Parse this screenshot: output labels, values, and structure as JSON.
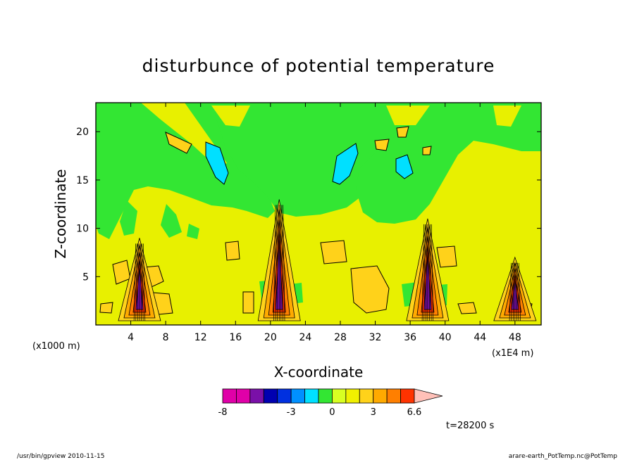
{
  "chart_data": {
    "type": "heatmap",
    "title": "disturbunce of potential temperature",
    "xlabel": "X-coordinate",
    "ylabel": "Z-coordinate",
    "x_unit_left": "(x1000 m)",
    "x_unit_right": "(x1E4 m)",
    "xlim": [
      0,
      51
    ],
    "ylim": [
      0,
      23
    ],
    "x_ticks": [
      4,
      8,
      12,
      16,
      20,
      24,
      28,
      32,
      36,
      40,
      44,
      48
    ],
    "y_ticks": [
      5,
      10,
      15,
      20
    ],
    "colorbar": {
      "levels": [
        -8,
        -7,
        -6,
        -5,
        -4,
        -3,
        -2,
        -1,
        0,
        1,
        2,
        3,
        4,
        5,
        6,
        6.6
      ],
      "labels": [
        "-8",
        "-3",
        "0",
        "3",
        "6.6"
      ],
      "colors": [
        "#e000a8",
        "#e000a8",
        "#7a10a8",
        "#0000b0",
        "#0030e0",
        "#0090ff",
        "#00e0ff",
        "#33e633",
        "#d8ff22",
        "#f0f000",
        "#ffd21a",
        "#ffaa00",
        "#ff7f00",
        "#ff3300",
        "#ff7766",
        "#ffc0b8"
      ]
    },
    "features": [
      {
        "kind": "plume",
        "x": 5,
        "top": 9,
        "value": "positive"
      },
      {
        "kind": "plume",
        "x": 21,
        "top": 13,
        "value": "positive"
      },
      {
        "kind": "plume",
        "x": 38,
        "top": 11,
        "value": "positive"
      },
      {
        "kind": "plume",
        "x": 48,
        "top": 7,
        "value": "positive"
      }
    ],
    "time_label": "t=28200 s"
  },
  "footer": {
    "left": "/usr/bin/gpview   2010-11-15",
    "right": "arare-earth_PotTemp.nc@PotTemp"
  }
}
